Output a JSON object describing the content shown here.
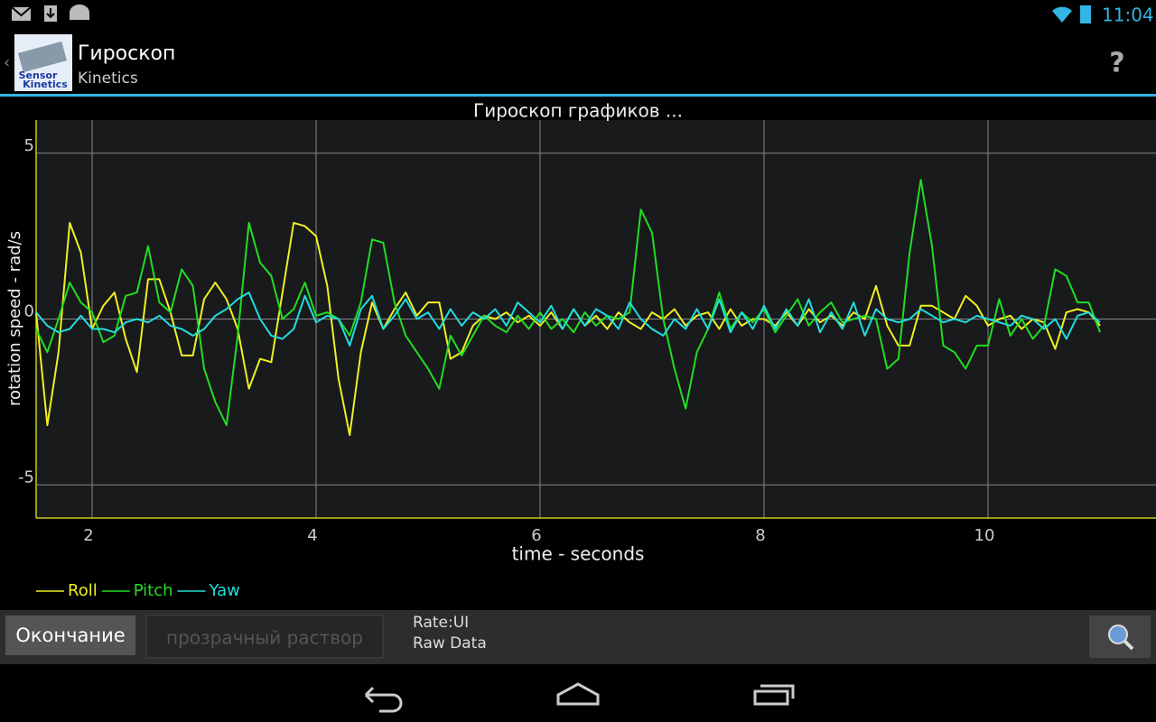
{
  "status_bar": {
    "time": "11:04"
  },
  "app_bar": {
    "icon_text": [
      "Sensor",
      "Kinetics"
    ],
    "title": "Гироскоп",
    "subtitle": "Kinetics",
    "help": "?"
  },
  "chart_data": {
    "type": "line",
    "title": "Гироскоп графиков  ...",
    "x_label": "time - seconds",
    "y_label": "rotation speed - rad/s",
    "xlim": [
      1.5,
      11.5
    ],
    "ylim": [
      -6,
      6
    ],
    "xticks": [
      2,
      4,
      6,
      8,
      10
    ],
    "yticks": [
      -5,
      0,
      5
    ],
    "grid": true,
    "legend": "bottom-left",
    "x": [
      1.5,
      1.6,
      1.7,
      1.8,
      1.9,
      2.0,
      2.1,
      2.2,
      2.3,
      2.4,
      2.5,
      2.6,
      2.7,
      2.8,
      2.9,
      3.0,
      3.1,
      3.2,
      3.3,
      3.4,
      3.5,
      3.6,
      3.7,
      3.8,
      3.9,
      4.0,
      4.1,
      4.2,
      4.3,
      4.4,
      4.5,
      4.6,
      4.7,
      4.8,
      4.9,
      5.0,
      5.1,
      5.2,
      5.3,
      5.4,
      5.5,
      5.6,
      5.7,
      5.8,
      5.9,
      6.0,
      6.1,
      6.2,
      6.3,
      6.4,
      6.5,
      6.6,
      6.7,
      6.8,
      6.9,
      7.0,
      7.1,
      7.2,
      7.3,
      7.4,
      7.5,
      7.6,
      7.7,
      7.8,
      7.9,
      8.0,
      8.1,
      8.2,
      8.3,
      8.4,
      8.5,
      8.6,
      8.7,
      8.8,
      8.9,
      9.0,
      9.1,
      9.2,
      9.3,
      9.4,
      9.5,
      9.6,
      9.7,
      9.8,
      9.9,
      10.0,
      10.1,
      10.2,
      10.3,
      10.4,
      10.5,
      10.6,
      10.7,
      10.8,
      10.9,
      11.0
    ],
    "series": [
      {
        "name": "Roll",
        "color": "#f0f020",
        "values": [
          0.2,
          -3.2,
          -1.0,
          2.9,
          2.0,
          -0.3,
          0.4,
          0.8,
          -0.6,
          -1.6,
          1.2,
          1.2,
          0.2,
          -1.1,
          -1.1,
          0.6,
          1.1,
          0.6,
          -0.3,
          -2.1,
          -1.2,
          -1.3,
          0.8,
          2.9,
          2.8,
          2.5,
          1.0,
          -1.8,
          -3.5,
          -1.0,
          0.5,
          -0.3,
          0.3,
          0.8,
          0.1,
          0.5,
          0.5,
          -1.2,
          -1.0,
          -0.2,
          0.1,
          0.0,
          0.2,
          -0.1,
          0.1,
          -0.2,
          0.2,
          -0.3,
          0.3,
          -0.2,
          0.1,
          -0.3,
          0.2,
          -0.1,
          -0.3,
          0.2,
          0.0,
          0.3,
          -0.2,
          0.1,
          0.2,
          -0.3,
          0.3,
          -0.2,
          0.0,
          0.0,
          -0.2,
          0.2,
          -0.2,
          0.3,
          -0.1,
          0.1,
          -0.2,
          0.2,
          0.0,
          1.0,
          -0.2,
          -0.8,
          -0.8,
          0.4,
          0.4,
          0.2,
          0.0,
          0.7,
          0.4,
          -0.2,
          0.0,
          0.1,
          -0.3,
          0.0,
          -0.1,
          -0.9,
          0.2,
          0.3,
          0.2,
          -0.2
        ]
      },
      {
        "name": "Pitch",
        "color": "#22dd22",
        "values": [
          -0.3,
          -1.0,
          0.0,
          1.1,
          0.5,
          0.2,
          -0.7,
          -0.5,
          0.7,
          0.8,
          2.2,
          0.5,
          0.2,
          1.5,
          1.0,
          -1.5,
          -2.5,
          -3.2,
          -0.5,
          2.9,
          1.7,
          1.3,
          0.0,
          0.3,
          1.1,
          0.1,
          0.2,
          0.0,
          -0.5,
          0.5,
          2.4,
          2.3,
          0.5,
          -0.5,
          -1.0,
          -1.5,
          -2.1,
          -0.5,
          -1.1,
          -0.5,
          0.1,
          -0.2,
          -0.4,
          0.1,
          -0.3,
          0.2,
          -0.3,
          0.0,
          -0.4,
          0.2,
          -0.2,
          0.1,
          0.0,
          0.2,
          3.3,
          2.6,
          0.0,
          -1.5,
          -2.7,
          -1.0,
          -0.3,
          0.8,
          -0.3,
          0.2,
          -0.1,
          0.3,
          -0.4,
          0.1,
          0.6,
          -0.2,
          0.2,
          0.5,
          -0.1,
          0.0,
          0.1,
          0.0,
          -1.5,
          -1.2,
          2.0,
          4.2,
          2.2,
          -0.8,
          -1.0,
          -1.5,
          -0.8,
          -0.8,
          0.6,
          -0.5,
          0.0,
          -0.6,
          -0.2,
          1.5,
          1.3,
          0.5,
          0.5,
          -0.4
        ]
      },
      {
        "name": "Yaw",
        "color": "#22dddd",
        "values": [
          0.2,
          -0.2,
          -0.4,
          -0.3,
          0.1,
          -0.3,
          -0.3,
          -0.4,
          -0.1,
          0.0,
          -0.1,
          0.1,
          -0.2,
          -0.3,
          -0.5,
          -0.3,
          0.1,
          0.3,
          0.6,
          0.8,
          0.0,
          -0.5,
          -0.6,
          -0.3,
          0.7,
          -0.1,
          0.1,
          0.0,
          -0.8,
          0.3,
          0.7,
          -0.3,
          0.1,
          0.6,
          0.0,
          0.2,
          -0.3,
          0.3,
          -0.2,
          0.2,
          0.0,
          0.3,
          -0.2,
          0.5,
          0.2,
          -0.1,
          0.4,
          -0.3,
          0.3,
          -0.2,
          0.3,
          0.1,
          -0.3,
          0.5,
          0.0,
          -0.3,
          -0.5,
          0.0,
          -0.3,
          0.3,
          -0.3,
          0.6,
          -0.4,
          0.2,
          -0.3,
          0.4,
          -0.3,
          0.3,
          -0.2,
          0.6,
          -0.4,
          0.2,
          -0.3,
          0.5,
          -0.5,
          0.3,
          0.0,
          -0.1,
          0.0,
          0.3,
          0.1,
          -0.1,
          0.0,
          -0.1,
          0.1,
          0.0,
          -0.1,
          -0.2,
          0.1,
          0.0,
          -0.3,
          0.0,
          -0.6,
          0.1,
          0.2,
          -0.1
        ]
      }
    ]
  },
  "toolbar": {
    "button": "Окончание",
    "input_placeholder": "прозрачный раствор",
    "rate": "Rate:UI",
    "mode": "Raw Data"
  }
}
